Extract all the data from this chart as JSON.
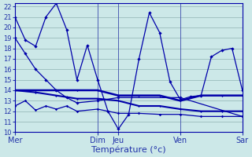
{
  "background_color": "#cce8e8",
  "grid_color": "#99bbbb",
  "line_color": "#0000aa",
  "xlabel": "Température (°c)",
  "xlabel_color": "#2233aa",
  "tick_label_color": "#2233aa",
  "ylim": [
    10,
    22.3
  ],
  "yticks": [
    10,
    11,
    12,
    13,
    14,
    15,
    16,
    17,
    18,
    19,
    20,
    21,
    22
  ],
  "day_labels": [
    "Mer",
    "Dim",
    "Jeu",
    "Ven",
    "Sar"
  ],
  "day_positions": [
    0,
    8,
    10,
    16,
    22
  ],
  "xlim": [
    0,
    22
  ],
  "line1_x": [
    0,
    1,
    2,
    3,
    4,
    5,
    6,
    7,
    8,
    9,
    10,
    11,
    12,
    13,
    14,
    15,
    16,
    17,
    18,
    19,
    20,
    21,
    22
  ],
  "line1_y": [
    21.0,
    18.8,
    18.2,
    21.0,
    22.3,
    19.8,
    15.0,
    18.3,
    15.0,
    12.0,
    10.3,
    11.7,
    17.0,
    21.4,
    19.5,
    14.8,
    13.1,
    13.4,
    13.5,
    17.2,
    17.8,
    18.0,
    14.0
  ],
  "line2_x": [
    0,
    1,
    2,
    3,
    4,
    5,
    6,
    8,
    10,
    16,
    22
  ],
  "line2_y": [
    19.0,
    17.5,
    16.0,
    15.0,
    14.0,
    13.3,
    12.8,
    13.0,
    13.3,
    13.3,
    11.5
  ],
  "line3_x": [
    0,
    2,
    4,
    6,
    8,
    10,
    12,
    14,
    16,
    18,
    20,
    22
  ],
  "line3_y": [
    14.0,
    14.0,
    14.0,
    14.0,
    14.0,
    13.5,
    13.5,
    13.5,
    13.0,
    13.5,
    13.5,
    13.5
  ],
  "line4_x": [
    0,
    2,
    4,
    6,
    8,
    10,
    12,
    14,
    16,
    18,
    20,
    22
  ],
  "line4_y": [
    14.0,
    13.8,
    13.5,
    13.2,
    13.2,
    13.0,
    12.5,
    12.5,
    12.2,
    12.0,
    12.0,
    12.0
  ],
  "line5_x": [
    0,
    1,
    2,
    3,
    4,
    5,
    6,
    8,
    10,
    12,
    14,
    16,
    18,
    20,
    22
  ],
  "line5_y": [
    12.5,
    13.0,
    12.1,
    12.5,
    12.2,
    12.5,
    12.0,
    12.2,
    11.8,
    11.8,
    11.7,
    11.7,
    11.5,
    11.5,
    11.5
  ]
}
